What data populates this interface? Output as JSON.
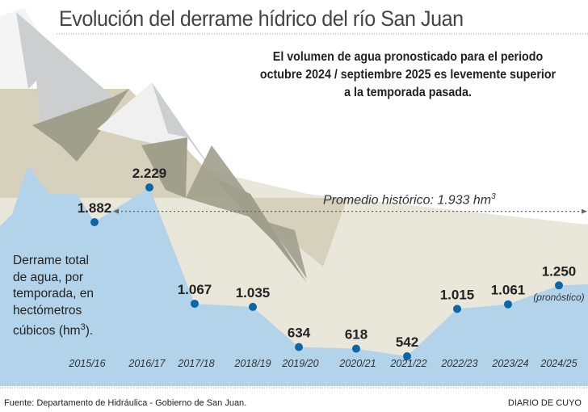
{
  "title": "Evolución del derrame hídrico del río San Juan",
  "subtitle": "El volumen de agua pronosticado para el periodo octubre 2024 / septiembre 2025 es levemente superior a la temporada pasada.",
  "colors": {
    "water": "#b3d3ea",
    "point": "#0b67a6",
    "land": "#e9e6da"
  },
  "chart_data": {
    "type": "area",
    "title": "Evolución del derrame hídrico del río San Juan",
    "ylabel": "Derrame total de agua, por temporada, en hectómetros cúbicos (hm3).",
    "categories": [
      "2015/16",
      "2016/17",
      "2017/18",
      "2018/19",
      "2019/20",
      "2020/21",
      "2021/22",
      "2022/23",
      "2023/24",
      "2024/25"
    ],
    "values": [
      1882,
      2229,
      1067,
      1035,
      634,
      618,
      542,
      1015,
      1061,
      1250
    ],
    "labels": [
      "1.882",
      "2.229",
      "1.067",
      "1.035",
      "634",
      "618",
      "542",
      "1.015",
      "1.061",
      "1.250"
    ],
    "forecast_note": "(pronóstico)",
    "reference_line": {
      "value": 1933,
      "label": "Promedio histórico: 1.933 hm",
      "unit_sup": "3"
    }
  },
  "ylabel_lines": [
    "Derrame total",
    "de agua, por",
    "temporada, en",
    "hectómetros",
    "cúbicos (hm",
    "3",
    ")."
  ],
  "footer": {
    "source": "Fuente: Departamento de Hidráulica - Gobierno de San Juan.",
    "brand": "DIARIO DE CUYO"
  }
}
